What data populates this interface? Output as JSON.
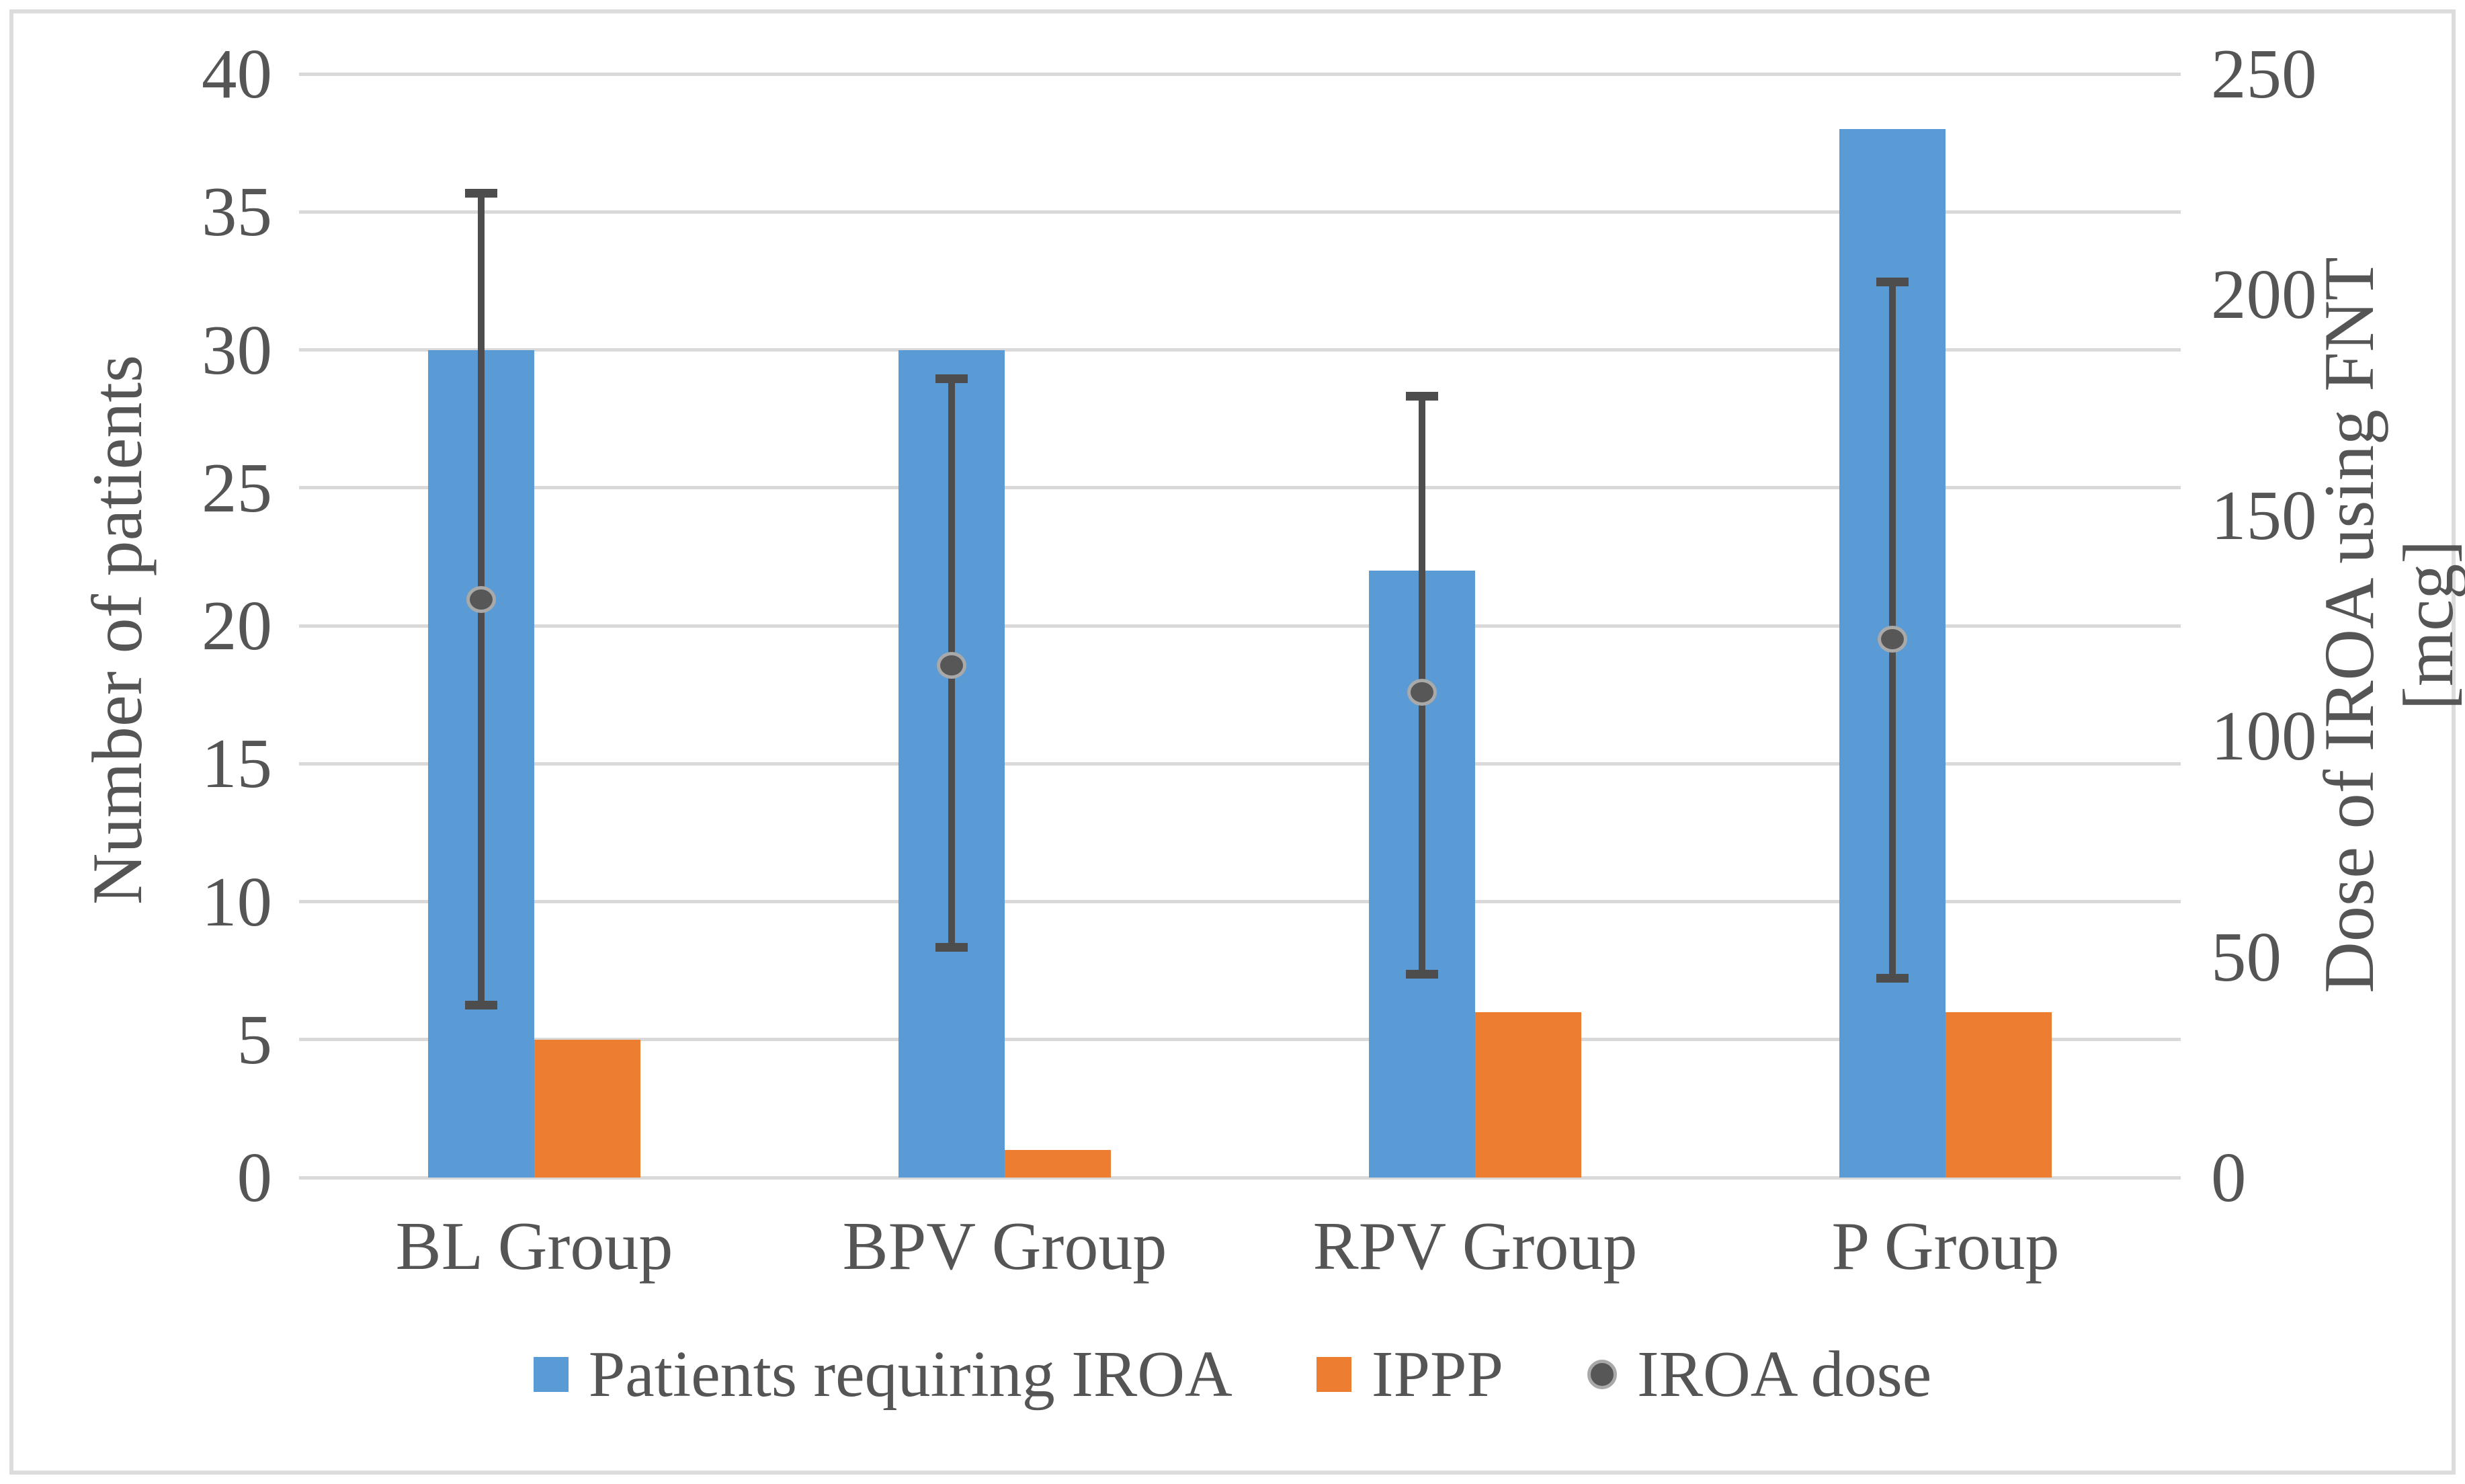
{
  "chart_data": {
    "type": "combo_bar_scatter",
    "categories": [
      "BL Group",
      "BPV Group",
      "RPV Group",
      "P Group"
    ],
    "bar_series": [
      {
        "name": "Patients requiring IROA",
        "axis": "left",
        "color": "#5B9BD5",
        "values": [
          30,
          30,
          22,
          38
        ]
      },
      {
        "name": "IPPP",
        "axis": "left",
        "color": "#ED7D31",
        "values": [
          5,
          1,
          6,
          6
        ]
      }
    ],
    "point_series": {
      "name": "IROA dose",
      "axis": "right",
      "dot_color": "#575757",
      "ring_color": "#A9A9A9",
      "error_color": "#4D4D4D",
      "values": [
        131,
        116,
        110,
        122
      ],
      "error_low": [
        39,
        52,
        46,
        45
      ],
      "error_high": [
        223,
        181,
        177,
        203
      ]
    },
    "left_axis": {
      "title": "Number of patients",
      "min": 0,
      "max": 40,
      "step": 5,
      "ticks": [
        "0",
        "5",
        "10",
        "15",
        "20",
        "25",
        "30",
        "35",
        "40"
      ]
    },
    "right_axis": {
      "title_line1": "Dose of IROA using FNT",
      "title_line2": "[mcg]",
      "min": 0,
      "max": 250,
      "step": 50,
      "ticks": [
        "0",
        "50",
        "100",
        "150",
        "200",
        "250"
      ]
    },
    "grid": true,
    "legend_position": "bottom",
    "gridline_color": "#D9D9D9",
    "text_color": "#555555",
    "border_color": "#DCDCDC",
    "background": "#FFFFFF"
  }
}
